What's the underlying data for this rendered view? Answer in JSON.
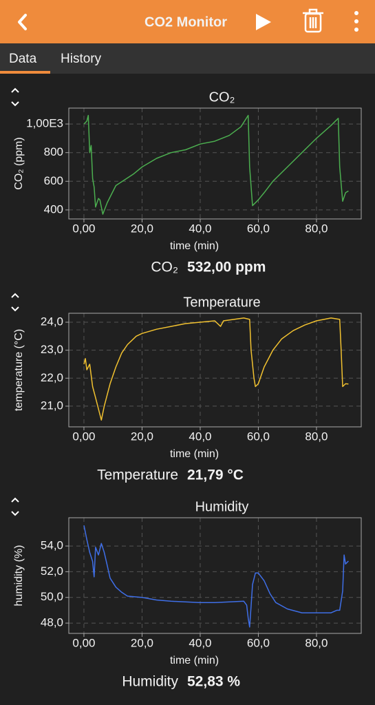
{
  "header": {
    "title": "CO2 Monitor"
  },
  "tabs": [
    "Data",
    "History"
  ],
  "chart_data": [
    {
      "type": "line",
      "title": "CO₂",
      "xlabel": "time (min)",
      "ylabel": "CO₂ (ppm)",
      "color": "#4caf50",
      "grid": true,
      "xlim": [
        -5.2,
        95.4
      ],
      "ylim": [
        337,
        1111
      ],
      "xticks": [
        {
          "value": 0,
          "label": "0,00"
        },
        {
          "value": 20,
          "label": "20,0"
        },
        {
          "value": 40,
          "label": "40,0"
        },
        {
          "value": 60,
          "label": "60,0"
        },
        {
          "value": 80,
          "label": "80,0"
        }
      ],
      "yticks": [
        {
          "value": 1000,
          "label": "1,00E3"
        },
        800,
        600,
        400
      ],
      "x": [
        0,
        1,
        1.5,
        2,
        2.5,
        3,
        3.5,
        4,
        5,
        5.5,
        6.5,
        8,
        11,
        17,
        20,
        25,
        30,
        35,
        40,
        45,
        50,
        54,
        56.5,
        57,
        58,
        60,
        62,
        65,
        70,
        75,
        80,
        85,
        87.5,
        88,
        89,
        90,
        91
      ],
      "values": [
        1000,
        1020,
        1060,
        800,
        850,
        620,
        560,
        420,
        480,
        470,
        370,
        450,
        570,
        650,
        700,
        760,
        800,
        820,
        860,
        880,
        920,
        980,
        1060,
        700,
        430,
        470,
        520,
        600,
        700,
        800,
        900,
        990,
        1040,
        700,
        460,
        520,
        532
      ]
    },
    {
      "type": "line",
      "title": "Temperature",
      "xlabel": "time (min)",
      "ylabel": "temperature (°C)",
      "color": "#f2c230",
      "grid": true,
      "xlim": [
        -5.2,
        95.4
      ],
      "ylim": [
        20.26,
        24.32
      ],
      "xticks": [
        {
          "value": 0,
          "label": "0,00"
        },
        {
          "value": 20,
          "label": "20,0"
        },
        {
          "value": 40,
          "label": "40,0"
        },
        {
          "value": 60,
          "label": "60,0"
        },
        {
          "value": 80,
          "label": "80,0"
        }
      ],
      "yticks": [
        {
          "value": 24,
          "label": "24,0"
        },
        {
          "value": 23,
          "label": "23,0"
        },
        {
          "value": 22,
          "label": "22,0"
        },
        {
          "value": 21,
          "label": "21,0"
        }
      ],
      "x": [
        0,
        0.5,
        1,
        2,
        3,
        4,
        5,
        6,
        7,
        9,
        11,
        13,
        15,
        18,
        20,
        25,
        30,
        35,
        40,
        45,
        47,
        48,
        55,
        57,
        57.5,
        58.5,
        59,
        60,
        62,
        65,
        68,
        72,
        76,
        80,
        85,
        88,
        88.5,
        89,
        90,
        91
      ],
      "values": [
        22.5,
        22.7,
        22.3,
        22.5,
        21.7,
        21.3,
        20.9,
        20.5,
        21.0,
        21.8,
        22.4,
        22.9,
        23.2,
        23.5,
        23.6,
        23.75,
        23.85,
        23.95,
        24.0,
        24.05,
        23.85,
        24.05,
        24.15,
        24.1,
        23.0,
        22.0,
        21.7,
        21.8,
        22.4,
        23.0,
        23.4,
        23.7,
        23.9,
        24.05,
        24.15,
        24.1,
        23.0,
        21.7,
        21.8,
        21.79
      ]
    },
    {
      "type": "line",
      "title": "Humidity",
      "xlabel": "time (min)",
      "ylabel": "humidity (%)",
      "color": "#3f6fe8",
      "grid": true,
      "xlim": [
        -5.2,
        95.4
      ],
      "ylim": [
        47.2,
        56.2
      ],
      "xticks": [
        {
          "value": 0,
          "label": "0,00"
        },
        {
          "value": 20,
          "label": "20,0"
        },
        {
          "value": 40,
          "label": "40,0"
        },
        {
          "value": 60,
          "label": "60,0"
        },
        {
          "value": 80,
          "label": "80,0"
        }
      ],
      "yticks": [
        {
          "value": 54,
          "label": "54,0"
        },
        {
          "value": 52,
          "label": "52,0"
        },
        {
          "value": 50,
          "label": "50,0"
        },
        {
          "value": 48,
          "label": "48,0"
        }
      ],
      "x": [
        0,
        1,
        2,
        3,
        3.5,
        4,
        5,
        6,
        7,
        8,
        9,
        11,
        13,
        15,
        20,
        25,
        30,
        35,
        40,
        45,
        50,
        55,
        56,
        56.5,
        57,
        57.5,
        58,
        59,
        60,
        62,
        64,
        66,
        70,
        75,
        80,
        85,
        87,
        88,
        89,
        89.5,
        90,
        91
      ],
      "values": [
        55.6,
        54.5,
        53.5,
        52.8,
        51.6,
        53.9,
        53.3,
        54.2,
        53.5,
        52.5,
        51.5,
        50.8,
        50.4,
        50.1,
        50.0,
        49.8,
        49.7,
        49.65,
        49.6,
        49.6,
        49.65,
        49.7,
        49.4,
        48.4,
        47.7,
        49.3,
        51.0,
        51.9,
        51.9,
        51.3,
        50.3,
        49.6,
        49.1,
        48.8,
        48.8,
        48.8,
        49.0,
        49.0,
        50.5,
        53.3,
        52.6,
        52.83
      ]
    }
  ],
  "readouts": [
    {
      "label": "CO₂",
      "value": "532,00 ppm"
    },
    {
      "label": "Temperature",
      "value": "21,79 °C"
    },
    {
      "label": "Humidity",
      "value": "52,83 %"
    }
  ]
}
